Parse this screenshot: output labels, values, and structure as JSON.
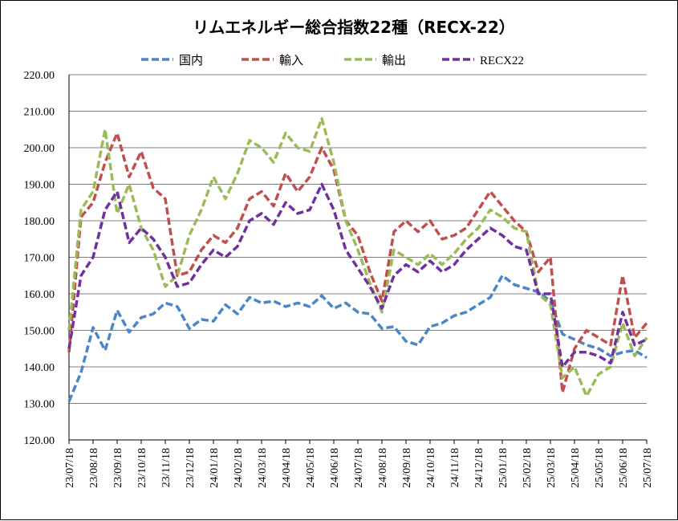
{
  "chart_data": {
    "type": "line",
    "title": "リムエネルギー総合指数22種（RECX-22）",
    "ylim": [
      120,
      220
    ],
    "ytick_labels": [
      "120.00",
      "130.00",
      "140.00",
      "150.00",
      "160.00",
      "170.00",
      "180.00",
      "190.00",
      "200.00",
      "210.00",
      "220.00"
    ],
    "xtick_labels": [
      "23/07/18",
      "23/08/18",
      "23/09/18",
      "23/10/18",
      "23/11/18",
      "23/12/18",
      "24/01/18",
      "24/02/18",
      "24/03/18",
      "24/04/18",
      "24/05/18",
      "24/06/18",
      "24/07/18",
      "24/08/18",
      "24/09/18",
      "24/10/18",
      "24/11/18",
      "24/12/18",
      "25/01/18",
      "25/02/18",
      "25/03/18",
      "25/04/18",
      "25/05/18",
      "25/06/18",
      "25/07/18"
    ],
    "grid": true,
    "legend_position": "top",
    "series": [
      {
        "name": "国内",
        "color": "#4A86C8",
        "values": [
          130.5,
          138.5,
          150.8,
          144.5,
          155.5,
          149.5,
          153.5,
          154.5,
          157.5,
          156.5,
          150.5,
          153.0,
          152.5,
          157.0,
          154.5,
          159.0,
          157.5,
          158.0,
          156.5,
          157.5,
          156.5,
          159.5,
          156.0,
          157.5,
          155.0,
          154.5,
          150.5,
          151.0,
          147.0,
          146.0,
          151.0,
          152.0,
          154.0,
          155.0,
          157.0,
          159.0,
          165.0,
          162.5,
          161.5,
          160.5,
          158.0,
          149.0,
          147.5,
          146.0,
          145.0,
          143.0,
          144.0,
          144.5,
          142.5
        ]
      },
      {
        "name": "輸入",
        "color": "#C0504D",
        "values": [
          144.0,
          181.0,
          185.0,
          196.0,
          204.0,
          192.0,
          199.0,
          189.0,
          186.0,
          165.0,
          166.0,
          172.0,
          176.0,
          174.0,
          178.0,
          186.0,
          188.0,
          184.0,
          193.0,
          188.0,
          192.0,
          200.0,
          194.0,
          180.0,
          176.0,
          166.0,
          158.0,
          177.0,
          180.0,
          177.0,
          180.0,
          175.0,
          176.0,
          178.0,
          183.0,
          188.0,
          184.0,
          180.0,
          177.0,
          166.0,
          170.0,
          133.0,
          145.0,
          150.0,
          148.0,
          146.0,
          165.0,
          148.0,
          152.0
        ]
      },
      {
        "name": "輸出",
        "color": "#9BBB59",
        "values": [
          150.0,
          183.0,
          188.0,
          205.0,
          182.0,
          190.0,
          178.0,
          172.0,
          162.0,
          165.0,
          176.0,
          183.0,
          192.0,
          186.0,
          193.0,
          202.0,
          200.0,
          196.0,
          204.0,
          200.0,
          199.0,
          208.0,
          196.0,
          180.0,
          172.0,
          163.0,
          155.0,
          172.0,
          170.0,
          168.0,
          171.0,
          168.0,
          171.0,
          175.0,
          178.0,
          183.0,
          181.0,
          178.0,
          177.0,
          160.0,
          157.0,
          137.0,
          140.0,
          132.0,
          138.0,
          140.0,
          152.0,
          143.0,
          148.0
        ]
      },
      {
        "name": "RECX22",
        "color": "#7030A0",
        "values": [
          145.0,
          165.0,
          170.0,
          183.0,
          188.0,
          174.0,
          178.0,
          175.0,
          170.0,
          162.0,
          163.0,
          168.0,
          172.0,
          170.0,
          173.0,
          180.0,
          182.0,
          179.0,
          185.0,
          182.0,
          183.0,
          190.0,
          183.0,
          172.0,
          167.0,
          162.0,
          156.0,
          165.0,
          168.0,
          166.0,
          169.0,
          166.0,
          168.0,
          172.0,
          175.0,
          178.0,
          176.0,
          173.0,
          172.0,
          160.0,
          160.0,
          140.0,
          144.0,
          144.0,
          143.0,
          141.0,
          155.0,
          146.0,
          147.5
        ]
      }
    ]
  }
}
